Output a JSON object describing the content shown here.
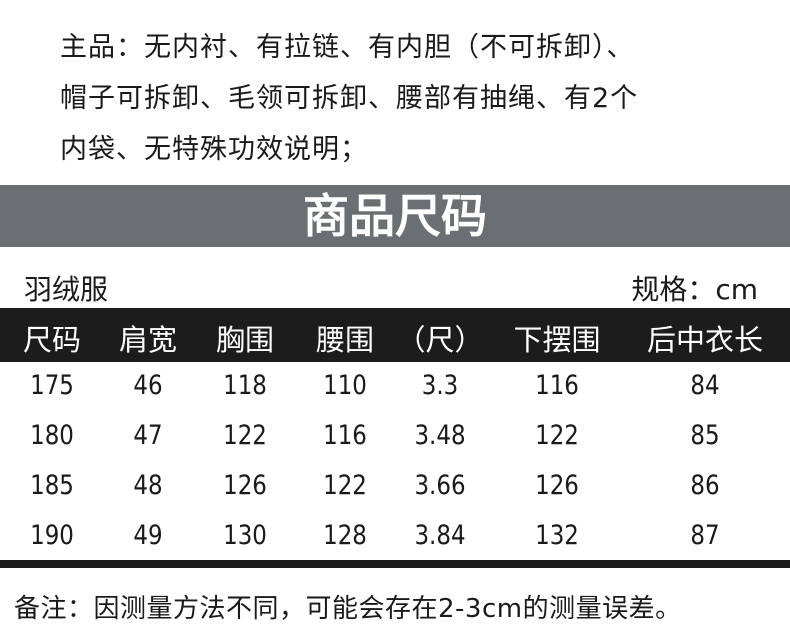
{
  "intro": {
    "lines": [
      "主品：无内衬、有拉链、有内胆（不可拆卸）、",
      "帽子可拆卸、毛领可拆卸、腰部有抽绳、有2个",
      "内袋、无特殊功效说明；"
    ]
  },
  "banner": {
    "title": "商品尺码",
    "background": "#6b6e72"
  },
  "product_type": "羽绒服",
  "unit_label": "规格：cm",
  "table": {
    "headers": [
      "尺码",
      "肩宽",
      "胸围",
      "腰围",
      "（尺）",
      "下摆围",
      "后中衣长"
    ],
    "rows": [
      [
        "175",
        "46",
        "118",
        "110",
        "3.3",
        "116",
        "84"
      ],
      [
        "180",
        "47",
        "122",
        "116",
        "3.48",
        "122",
        "85"
      ],
      [
        "185",
        "48",
        "126",
        "122",
        "3.66",
        "126",
        "86"
      ],
      [
        "190",
        "49",
        "130",
        "128",
        "3.84",
        "132",
        "87"
      ]
    ],
    "header_background": "#1c1c1c"
  },
  "note": "备注：因测量方法不同，可能会存在2-3cm的测量误差。"
}
